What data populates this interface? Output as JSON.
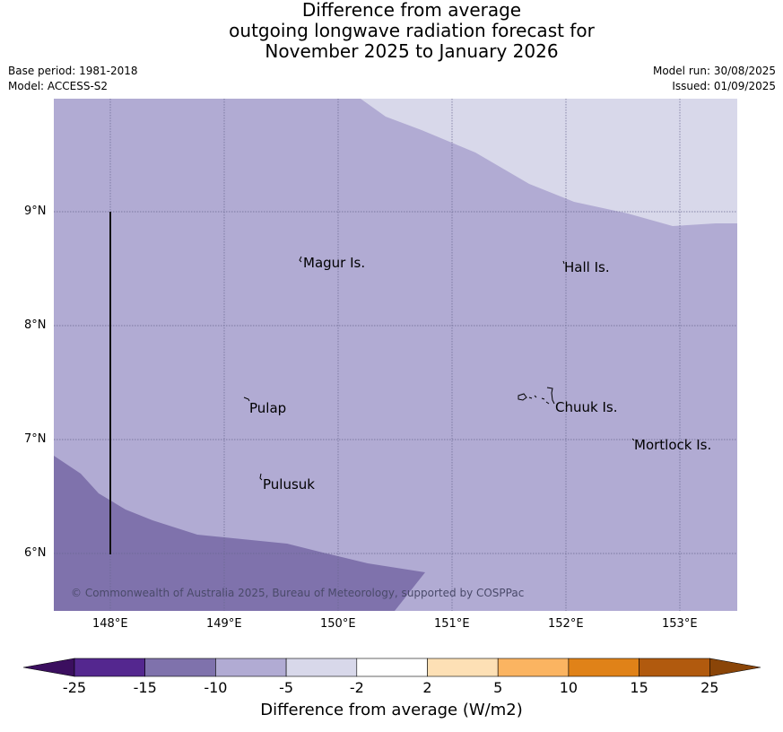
{
  "title": {
    "line1": "Difference from average",
    "line2": "outgoing longwave radiation forecast for",
    "line3": "November 2025 to January 2026"
  },
  "meta": {
    "base_period": "Base period: 1981-2018",
    "model": "Model: ACCESS-S2",
    "model_run": "Model run: 30/08/2025",
    "issued": "Issued: 01/09/2025"
  },
  "axes": {
    "lat_labels": [
      "9°N",
      "8°N",
      "7°N",
      "6°N"
    ],
    "lon_labels": [
      "148°E",
      "149°E",
      "150°E",
      "151°E",
      "152°E",
      "153°E"
    ],
    "lat_range": [
      5.5,
      10.0
    ],
    "lon_range": [
      147.5,
      153.5
    ],
    "grid": true
  },
  "places": {
    "magur": "Magur Is.",
    "hall": "Hall Is.",
    "pulap": "Pulap",
    "chuuk": "Chuuk Is.",
    "mortlock": "Mortlock Is.",
    "pulusuk": "Pulusuk"
  },
  "copyright": "© Commonwealth of Australia 2025, Bureau of Meteorology, supported by COSPPac",
  "colorbar": {
    "label": "Difference from average (W/m2)",
    "ticks": [
      "-25",
      "-15",
      "-10",
      "-5",
      "-2",
      "2",
      "5",
      "10",
      "15",
      "25"
    ],
    "colors": {
      "below": "#3b0f5f",
      "c1": "#54278f",
      "c2": "#7f72ac",
      "c3": "#b1abd3",
      "c4": "#d8d8ea",
      "c5": "#ffffff",
      "c6": "#fde0b5",
      "c7": "#fbb461",
      "c8": "#e08218",
      "c9": "#b15a0e",
      "above": "#8a4508"
    }
  }
}
